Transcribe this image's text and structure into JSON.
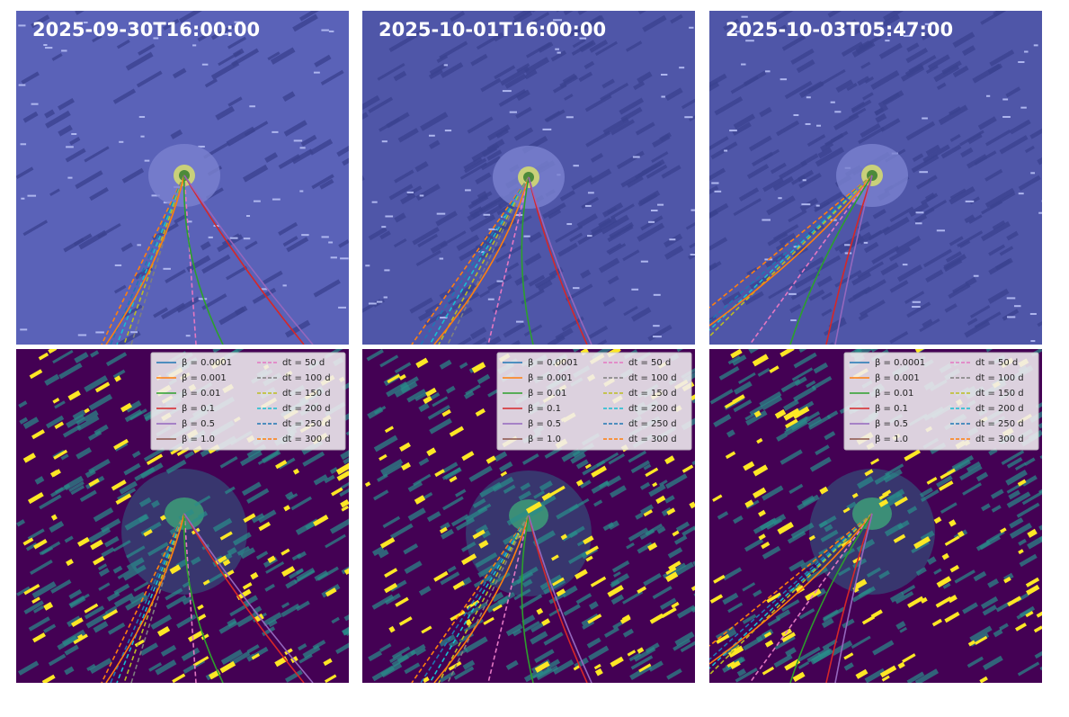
{
  "panels": [
    {
      "timestamp": "2025-09-30T16:00:00"
    },
    {
      "timestamp": "2025-10-01T16:00:00"
    },
    {
      "timestamp": "2025-10-03T05:47:00"
    }
  ],
  "legend": {
    "beta": [
      "β = 0.0001",
      "β = 0.001",
      "β = 0.01",
      "β = 0.1",
      "β = 0.5",
      "β = 1.0"
    ],
    "dt": [
      "dt = 50 d",
      "dt = 100 d",
      "dt = 150 d",
      "dt = 200 d",
      "dt = 250 d",
      "dt = 300 d"
    ]
  }
}
